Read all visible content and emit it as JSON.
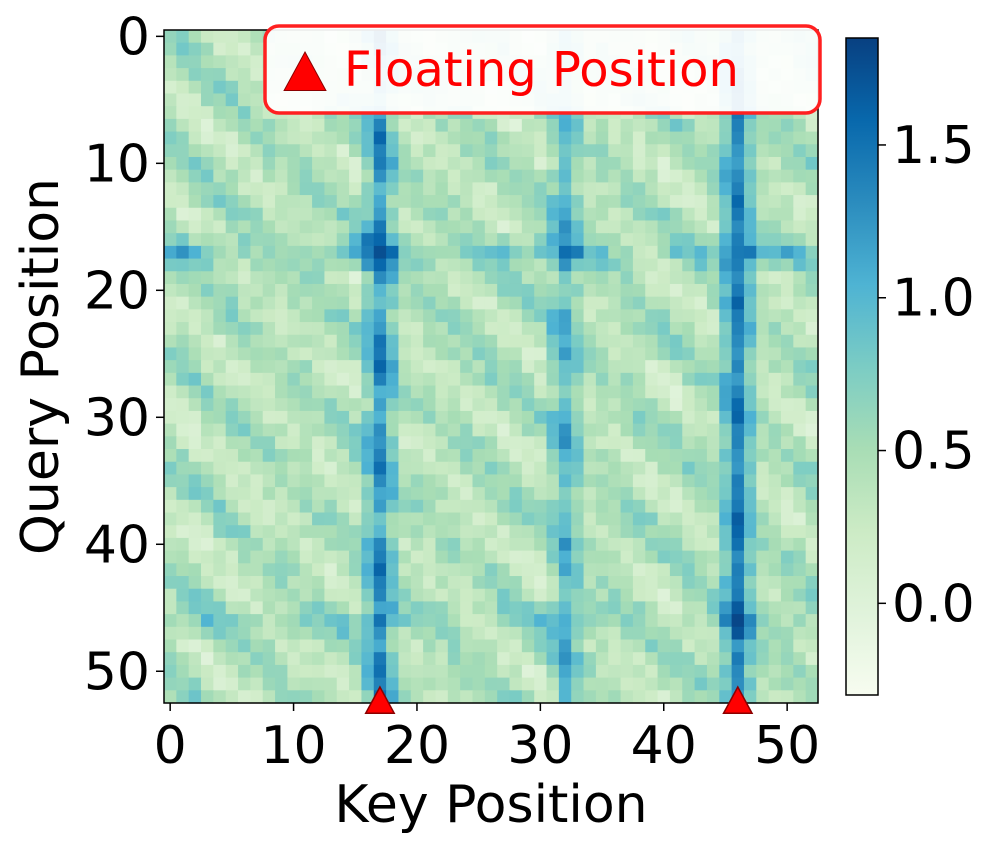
{
  "chart_data": {
    "type": "heatmap",
    "xlabel": "Key Position",
    "ylabel": "Query Position",
    "x_ticks": [
      0,
      10,
      20,
      30,
      40,
      50
    ],
    "y_ticks": [
      0,
      10,
      20,
      30,
      40,
      50
    ],
    "size": 53,
    "colormap": "GnBu",
    "colorbar": {
      "range": [
        -0.3,
        1.85
      ],
      "ticks": [
        0.0,
        0.5,
        1.0,
        1.5
      ],
      "tick_labels": [
        "0.0",
        "0.5",
        "1.0",
        "1.5"
      ]
    },
    "floating_positions": [
      17,
      46
    ],
    "strong_columns": [
      {
        "position": 17,
        "strength": 0.85
      },
      {
        "position": 32,
        "strength": 0.55
      },
      {
        "position": 46,
        "strength": 0.95
      }
    ],
    "strong_rows": [
      {
        "position": 17,
        "strength": 0.55
      },
      {
        "position": 46,
        "strength": 0.35
      }
    ],
    "peak_cells": [
      {
        "query": 17,
        "key": 17,
        "value": 1.75
      },
      {
        "query": 46,
        "key": 46,
        "value": 1.8
      },
      {
        "query": 46,
        "key": 17,
        "value": 1.5
      },
      {
        "query": 17,
        "key": 46,
        "value": 1.45
      }
    ],
    "value_range_estimate": [
      -0.25,
      1.8
    ],
    "legend": {
      "marker": "▲",
      "label": "Floating Position",
      "placement": "top-right",
      "color": "#ff0000"
    }
  }
}
